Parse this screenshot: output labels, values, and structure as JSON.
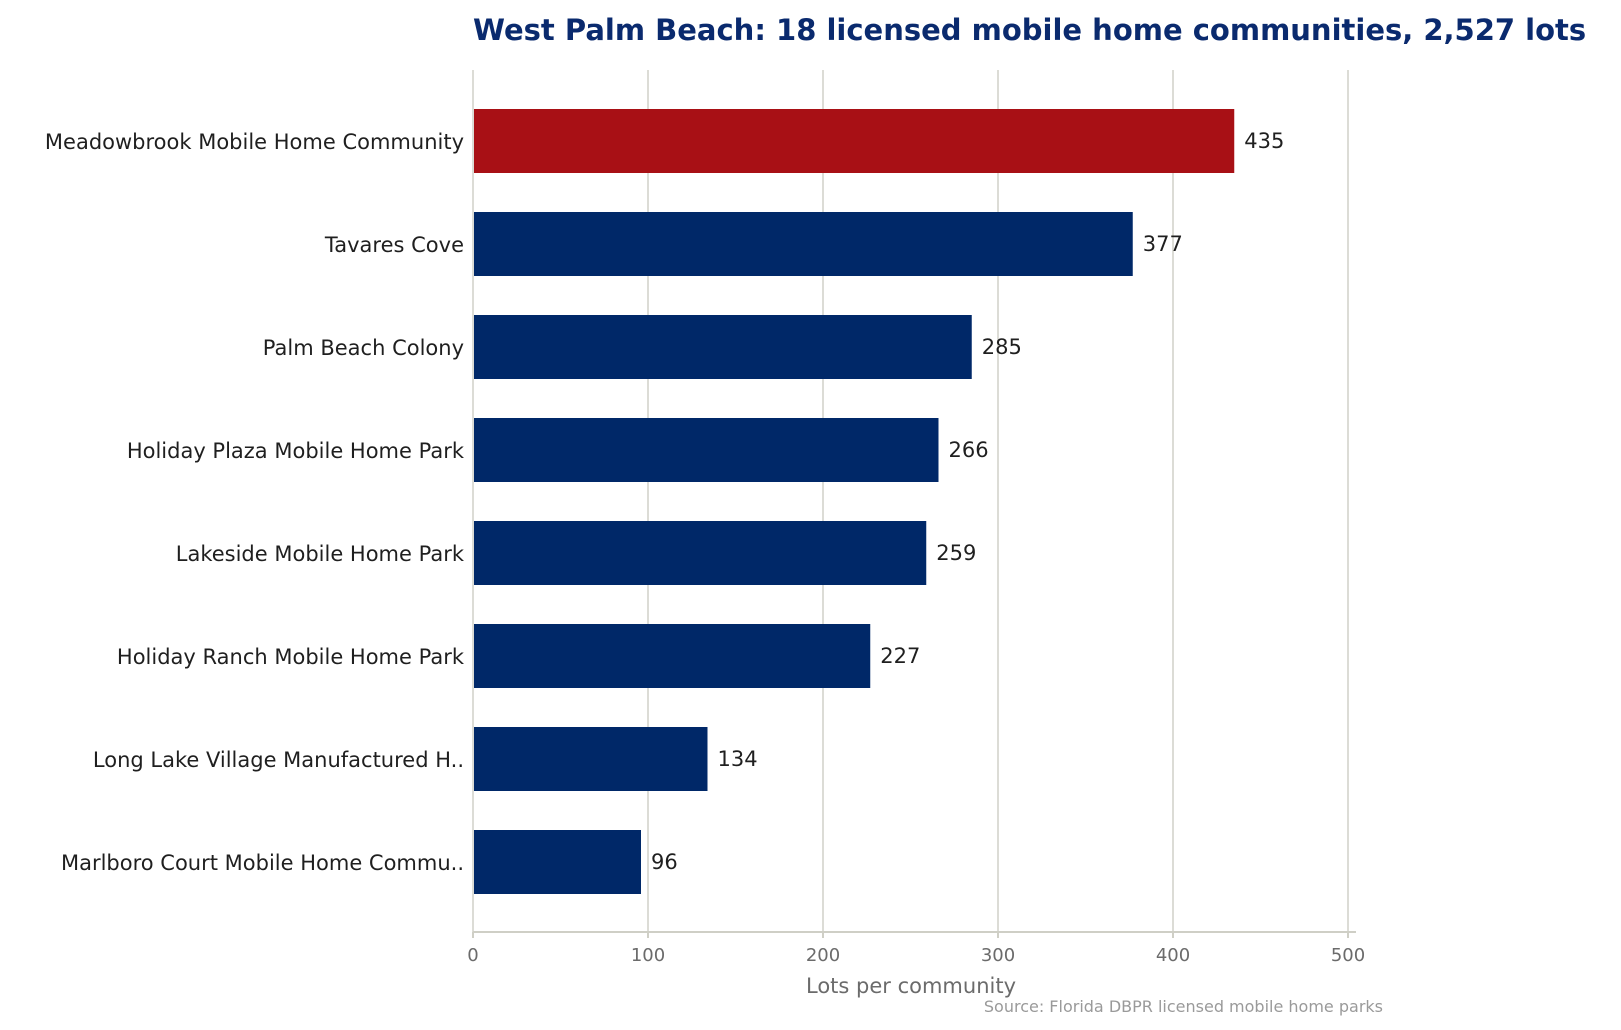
{
  "chart_data": {
    "type": "bar",
    "orientation": "horizontal",
    "title": "West Palm Beach: 18 licensed mobile home communities, 2,527 lots",
    "xlabel": "Lots per community",
    "ylabel": "",
    "xlim": [
      0,
      500
    ],
    "xticks": [
      0,
      100,
      200,
      300,
      400,
      500
    ],
    "grid": true,
    "categories": [
      "Meadowbrook Mobile Home Community",
      "Tavares Cove",
      "Palm Beach Colony",
      "Holiday Plaza Mobile Home Park",
      "Lakeside Mobile Home Park",
      "Holiday Ranch Mobile Home Park",
      "Long Lake Village Manufactured H..",
      "Marlboro Court Mobile Home Commu.."
    ],
    "values": [
      435,
      377,
      285,
      266,
      259,
      227,
      134,
      96
    ],
    "highlight_index": 0,
    "colors": {
      "highlight": "#a81015",
      "default": "#002868"
    },
    "source": "Source: Florida DBPR licensed mobile home parks"
  }
}
